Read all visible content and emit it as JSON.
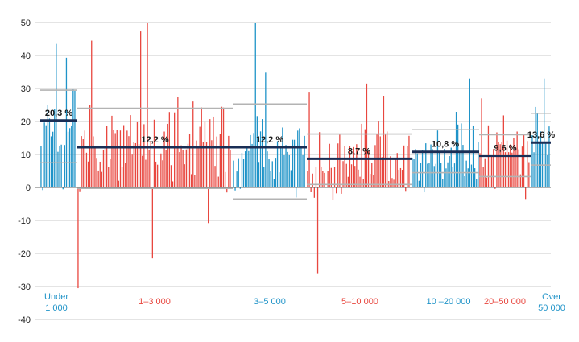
{
  "chart_data": {
    "type": "bar",
    "title": "",
    "xlabel": "",
    "ylabel": "",
    "ylim": [
      -40,
      50
    ],
    "yticks": [
      50,
      40,
      30,
      20,
      10,
      0,
      -10,
      -20,
      -30,
      -40
    ],
    "grid": true,
    "colors": {
      "blue": "#1f93c8",
      "red": "#e8473f",
      "navy": "#1a2e55",
      "range": "#b3b3b3",
      "grid": "#b8b8b8"
    },
    "groups": [
      {
        "label_lines": [
          "Under",
          "1 000"
        ],
        "color": "blue",
        "avg": 20.3,
        "avg_label": "20,3 %",
        "range": [
          7.5,
          29.5
        ],
        "seed": 11,
        "base": 18,
        "spread": 10,
        "peaks": [
          [
            0.45,
            43.5
          ],
          [
            0.75,
            39.3
          ]
        ]
      },
      {
        "label_lines": [
          "1–3 000"
        ],
        "color": "red",
        "avg": 12.2,
        "avg_label": "12,2 %",
        "range": [
          -0.3,
          24.0
        ],
        "seed": 23,
        "base": 12,
        "spread": 13,
        "peaks": [
          [
            0.0,
            -30.5
          ],
          [
            0.09,
            44.5
          ],
          [
            0.41,
            47.3
          ],
          [
            0.46,
            50.0
          ],
          [
            0.49,
            -21.5
          ],
          [
            0.85,
            -10.8
          ]
        ]
      },
      {
        "label_lines": [
          "3–5 000"
        ],
        "color": "blue",
        "avg": 12.2,
        "avg_label": "12,2 %",
        "range": [
          -3.5,
          25.3
        ],
        "seed": 37,
        "base": 11,
        "spread": 8,
        "peaks": [
          [
            0.3,
            50.0
          ],
          [
            0.46,
            34.8
          ]
        ]
      },
      {
        "label_lines": [
          "5–10 000"
        ],
        "color": "red",
        "avg": 8.7,
        "avg_label": "8,7 %",
        "range": [
          0.9,
          16.2
        ],
        "seed": 41,
        "base": 8,
        "spread": 10,
        "peaks": [
          [
            0.02,
            29.0
          ],
          [
            0.1,
            -26.0
          ],
          [
            0.58,
            31.5
          ],
          [
            0.75,
            27.8
          ]
        ]
      },
      {
        "label_lines": [
          "10 –20 000"
        ],
        "color": "blue",
        "avg": 10.8,
        "avg_label": "10,8 %",
        "range": [
          4.5,
          17.5
        ],
        "seed": 53,
        "base": 10,
        "spread": 9,
        "peaks": [
          [
            0.88,
            33.0
          ]
        ]
      },
      {
        "label_lines": [
          "20–50 000"
        ],
        "color": "red",
        "avg": 9.6,
        "avg_label": "9,6 %",
        "range": [
          3.3,
          16.0
        ],
        "seed": 61,
        "base": 10,
        "spread": 9,
        "peaks": [
          [
            0.05,
            27.0
          ]
        ]
      },
      {
        "label_lines": [
          "Over",
          "50 000"
        ],
        "color": "blue",
        "avg": 13.6,
        "avg_label": "13,6 %",
        "range": [
          6.8,
          22.5
        ],
        "seed": 71,
        "base": 15,
        "spread": 9,
        "peaks": [
          [
            0.7,
            33.0
          ]
        ]
      }
    ]
  }
}
